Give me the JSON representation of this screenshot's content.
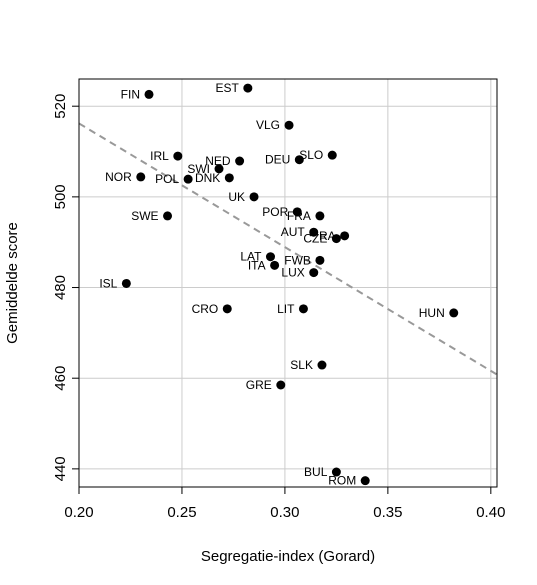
{
  "chart_data": {
    "type": "scatter",
    "xlabel": "Segregatie-index (Gorard)",
    "ylabel": "Gemiddelde score",
    "xlim": [
      0.2,
      0.403
    ],
    "ylim": [
      436,
      526
    ],
    "xticks": [
      "0.20",
      "0.25",
      "0.30",
      "0.35",
      "0.40"
    ],
    "yticks": [
      "440",
      "460",
      "480",
      "500",
      "520"
    ],
    "grid": true,
    "trendline": {
      "style": "dashed",
      "color": "#999999",
      "x": [
        0.2,
        0.403
      ],
      "y": [
        516.2,
        460.8
      ]
    },
    "points": [
      {
        "label": "FIN",
        "x": 0.234,
        "y": 522.6,
        "side": "left"
      },
      {
        "label": "EST",
        "x": 0.282,
        "y": 524.0,
        "side": "left"
      },
      {
        "label": "VLG",
        "x": 0.302,
        "y": 515.8,
        "side": "left"
      },
      {
        "label": "IRL",
        "x": 0.248,
        "y": 509.0,
        "side": "left"
      },
      {
        "label": "NED",
        "x": 0.278,
        "y": 507.9,
        "side": "left"
      },
      {
        "label": "SWI",
        "x": 0.268,
        "y": 506.2,
        "side": "left"
      },
      {
        "label": "DEU",
        "x": 0.307,
        "y": 508.2,
        "side": "left"
      },
      {
        "label": "SLO",
        "x": 0.323,
        "y": 509.2,
        "side": "left"
      },
      {
        "label": "NOR",
        "x": 0.23,
        "y": 504.4,
        "side": "left"
      },
      {
        "label": "POL",
        "x": 0.253,
        "y": 503.9,
        "side": "left"
      },
      {
        "label": "DNK",
        "x": 0.273,
        "y": 504.2,
        "side": "left"
      },
      {
        "label": "UK",
        "x": 0.285,
        "y": 500.0,
        "side": "left"
      },
      {
        "label": "SWE",
        "x": 0.243,
        "y": 495.8,
        "side": "left"
      },
      {
        "label": "POR",
        "x": 0.306,
        "y": 496.7,
        "side": "left"
      },
      {
        "label": "FRA",
        "x": 0.317,
        "y": 495.8,
        "side": "left"
      },
      {
        "label": "AUT",
        "x": 0.314,
        "y": 492.2,
        "side": "left"
      },
      {
        "label": "CZE",
        "x": 0.325,
        "y": 490.8,
        "side": "left"
      },
      {
        "label": "RA",
        "x": 0.329,
        "y": 491.4,
        "side": "left"
      },
      {
        "label": "LAT",
        "x": 0.293,
        "y": 486.8,
        "side": "left"
      },
      {
        "label": "ITA",
        "x": 0.295,
        "y": 484.9,
        "side": "left"
      },
      {
        "label": "FWB",
        "x": 0.317,
        "y": 486.0,
        "side": "left"
      },
      {
        "label": "LUX",
        "x": 0.314,
        "y": 483.3,
        "side": "left"
      },
      {
        "label": "ISL",
        "x": 0.223,
        "y": 480.9,
        "side": "left"
      },
      {
        "label": "CRO",
        "x": 0.272,
        "y": 475.3,
        "side": "left"
      },
      {
        "label": "LIT",
        "x": 0.309,
        "y": 475.3,
        "side": "left"
      },
      {
        "label": "HUN",
        "x": 0.382,
        "y": 474.4,
        "side": "left"
      },
      {
        "label": "SLK",
        "x": 0.318,
        "y": 462.9,
        "side": "left"
      },
      {
        "label": "GRE",
        "x": 0.298,
        "y": 458.5,
        "side": "left"
      },
      {
        "label": "BUL",
        "x": 0.325,
        "y": 439.3,
        "side": "left"
      },
      {
        "label": "ROM",
        "x": 0.339,
        "y": 437.4,
        "side": "left"
      }
    ]
  }
}
